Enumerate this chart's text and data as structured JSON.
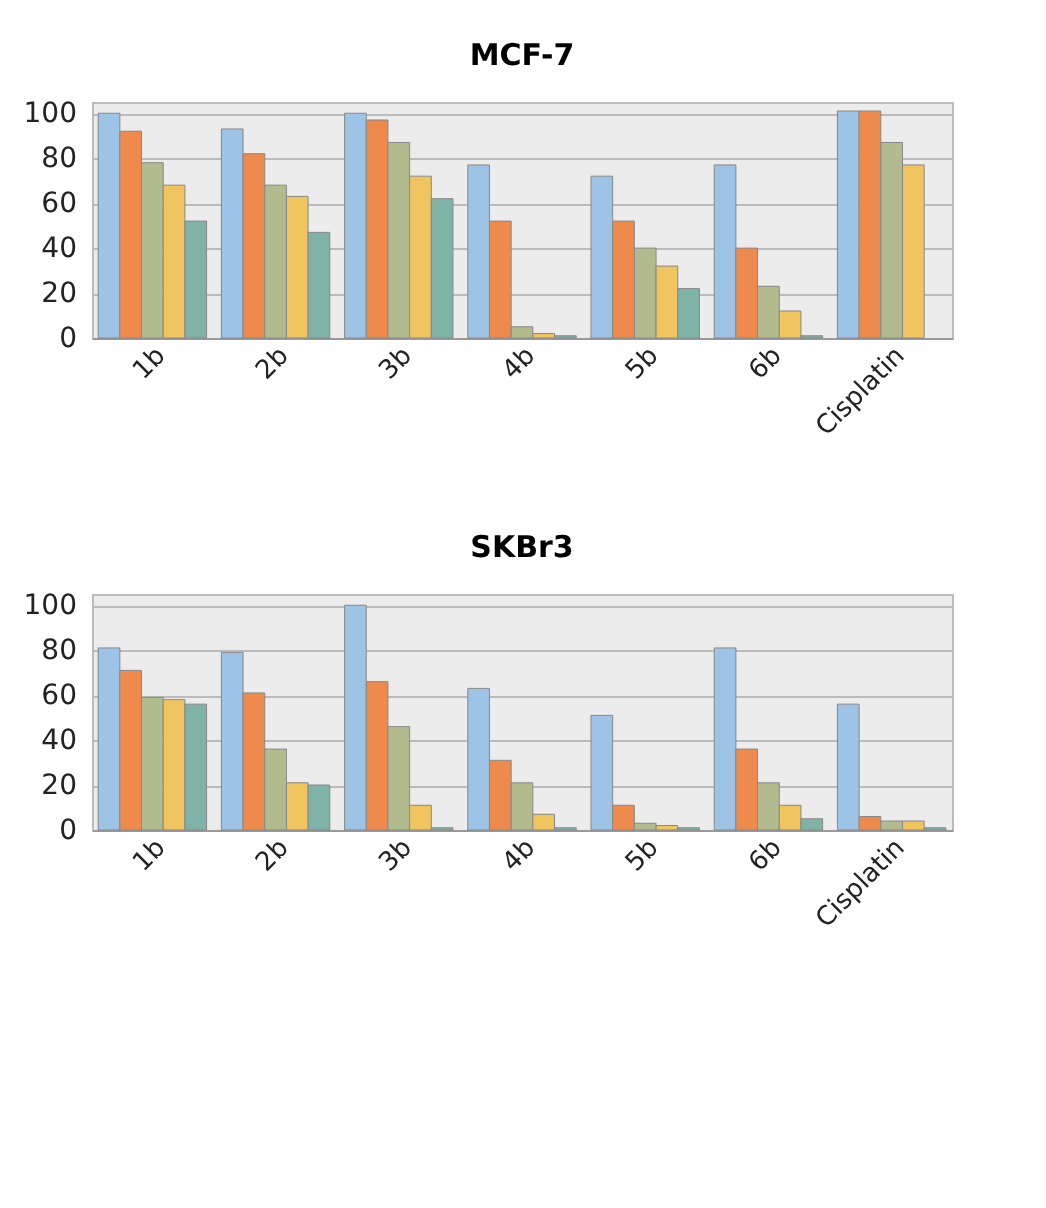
{
  "chart_data": [
    {
      "type": "bar",
      "title": "MCF-7",
      "categories": [
        "1b",
        "2b",
        "3b",
        "4b",
        "5b",
        "6b",
        "Cisplatin"
      ],
      "ylim": [
        0,
        105
      ],
      "yticks": [
        0,
        20,
        40,
        60,
        80,
        100
      ],
      "grid": "y",
      "series": [
        {
          "color": "#9dc3e6",
          "values": [
            100,
            93,
            100,
            77,
            72,
            77,
            101
          ]
        },
        {
          "color": "#ed8a4c",
          "values": [
            92,
            82,
            97,
            52,
            52,
            40,
            101
          ]
        },
        {
          "color": "#b2bb8e",
          "values": [
            78,
            68,
            87,
            5,
            40,
            23,
            87
          ]
        },
        {
          "color": "#f0c45e",
          "values": [
            68,
            63,
            72,
            2,
            32,
            12,
            77
          ]
        },
        {
          "color": "#7fb3a8",
          "values": [
            52,
            47,
            62,
            1,
            22,
            1,
            null
          ]
        }
      ]
    },
    {
      "type": "bar",
      "title": "SKBr3",
      "categories": [
        "1b",
        "2b",
        "3b",
        "4b",
        "5b",
        "6b",
        "Cisplatin"
      ],
      "ylim": [
        0,
        105
      ],
      "yticks": [
        0,
        20,
        40,
        60,
        80,
        100
      ],
      "grid": "y",
      "series": [
        {
          "color": "#9dc3e6",
          "values": [
            81,
            79,
            100,
            63,
            51,
            81,
            56
          ]
        },
        {
          "color": "#ed8a4c",
          "values": [
            71,
            61,
            66,
            31,
            11,
            36,
            6
          ]
        },
        {
          "color": "#b2bb8e",
          "values": [
            59,
            36,
            46,
            21,
            3,
            21,
            4
          ]
        },
        {
          "color": "#f0c45e",
          "values": [
            58,
            21,
            11,
            7,
            2,
            11,
            4
          ]
        },
        {
          "color": "#7fb3a8",
          "values": [
            56,
            20,
            1,
            1,
            1,
            5,
            1
          ]
        }
      ]
    }
  ]
}
